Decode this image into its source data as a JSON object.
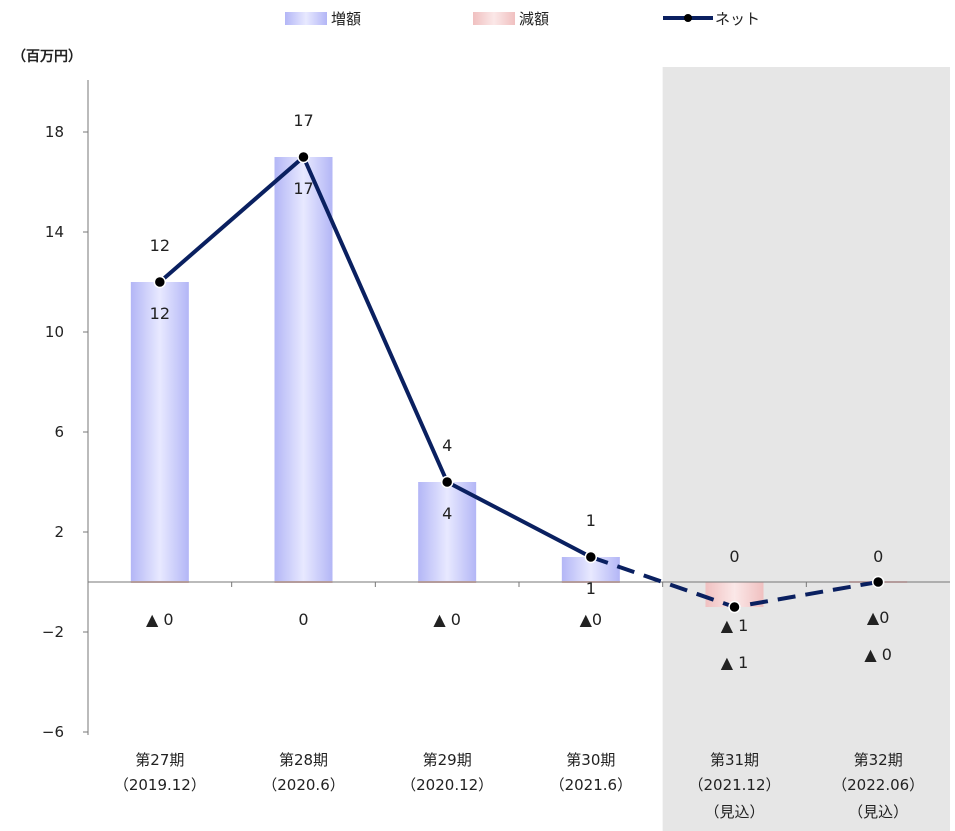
{
  "chart_data": {
    "type": "bar",
    "unit_label": "（百万円）",
    "categories": [
      {
        "label": "第27期",
        "sub": "（2019.12）",
        "sub2": ""
      },
      {
        "label": "第28期",
        "sub": "（2020.6）",
        "sub2": ""
      },
      {
        "label": "第29期",
        "sub": "（2020.12）",
        "sub2": ""
      },
      {
        "label": "第30期",
        "sub": "（2021.6）",
        "sub2": ""
      },
      {
        "label": "第31期",
        "sub": "（2021.12）",
        "sub2": "（見込）"
      },
      {
        "label": "第32期",
        "sub": "（2022.06）",
        "sub2": "（見込）"
      }
    ],
    "series": [
      {
        "name": "増額",
        "kind": "bar",
        "color": "#b4b8f6",
        "values": [
          12,
          17,
          4,
          1,
          0,
          0
        ],
        "labels": [
          "12",
          "17",
          "4",
          "1",
          "",
          ""
        ]
      },
      {
        "name": "減額",
        "kind": "bar",
        "color": "#f2c4c4",
        "values": [
          0,
          0,
          0,
          0,
          -1,
          0
        ],
        "labels": [
          "▲ 0",
          "0",
          "▲ 0",
          "▲0",
          "▲ 1",
          "▲0"
        ]
      },
      {
        "name": "ネット",
        "kind": "line",
        "color": "#0a2060",
        "values": [
          12,
          17,
          4,
          1,
          -1,
          0
        ],
        "labels": [
          "12",
          "17",
          "4",
          "1",
          "▲ 1",
          "0"
        ],
        "forecast_from_index": 3
      }
    ],
    "top_labels": [
      "",
      "",
      "",
      "",
      "0",
      "0"
    ],
    "y_ticks": [
      18,
      14,
      10,
      6,
      2,
      -2,
      -6
    ],
    "ylim": [
      -6,
      20
    ],
    "forecast_shade": {
      "from_category": 4,
      "color": "#e6e6e6"
    }
  }
}
